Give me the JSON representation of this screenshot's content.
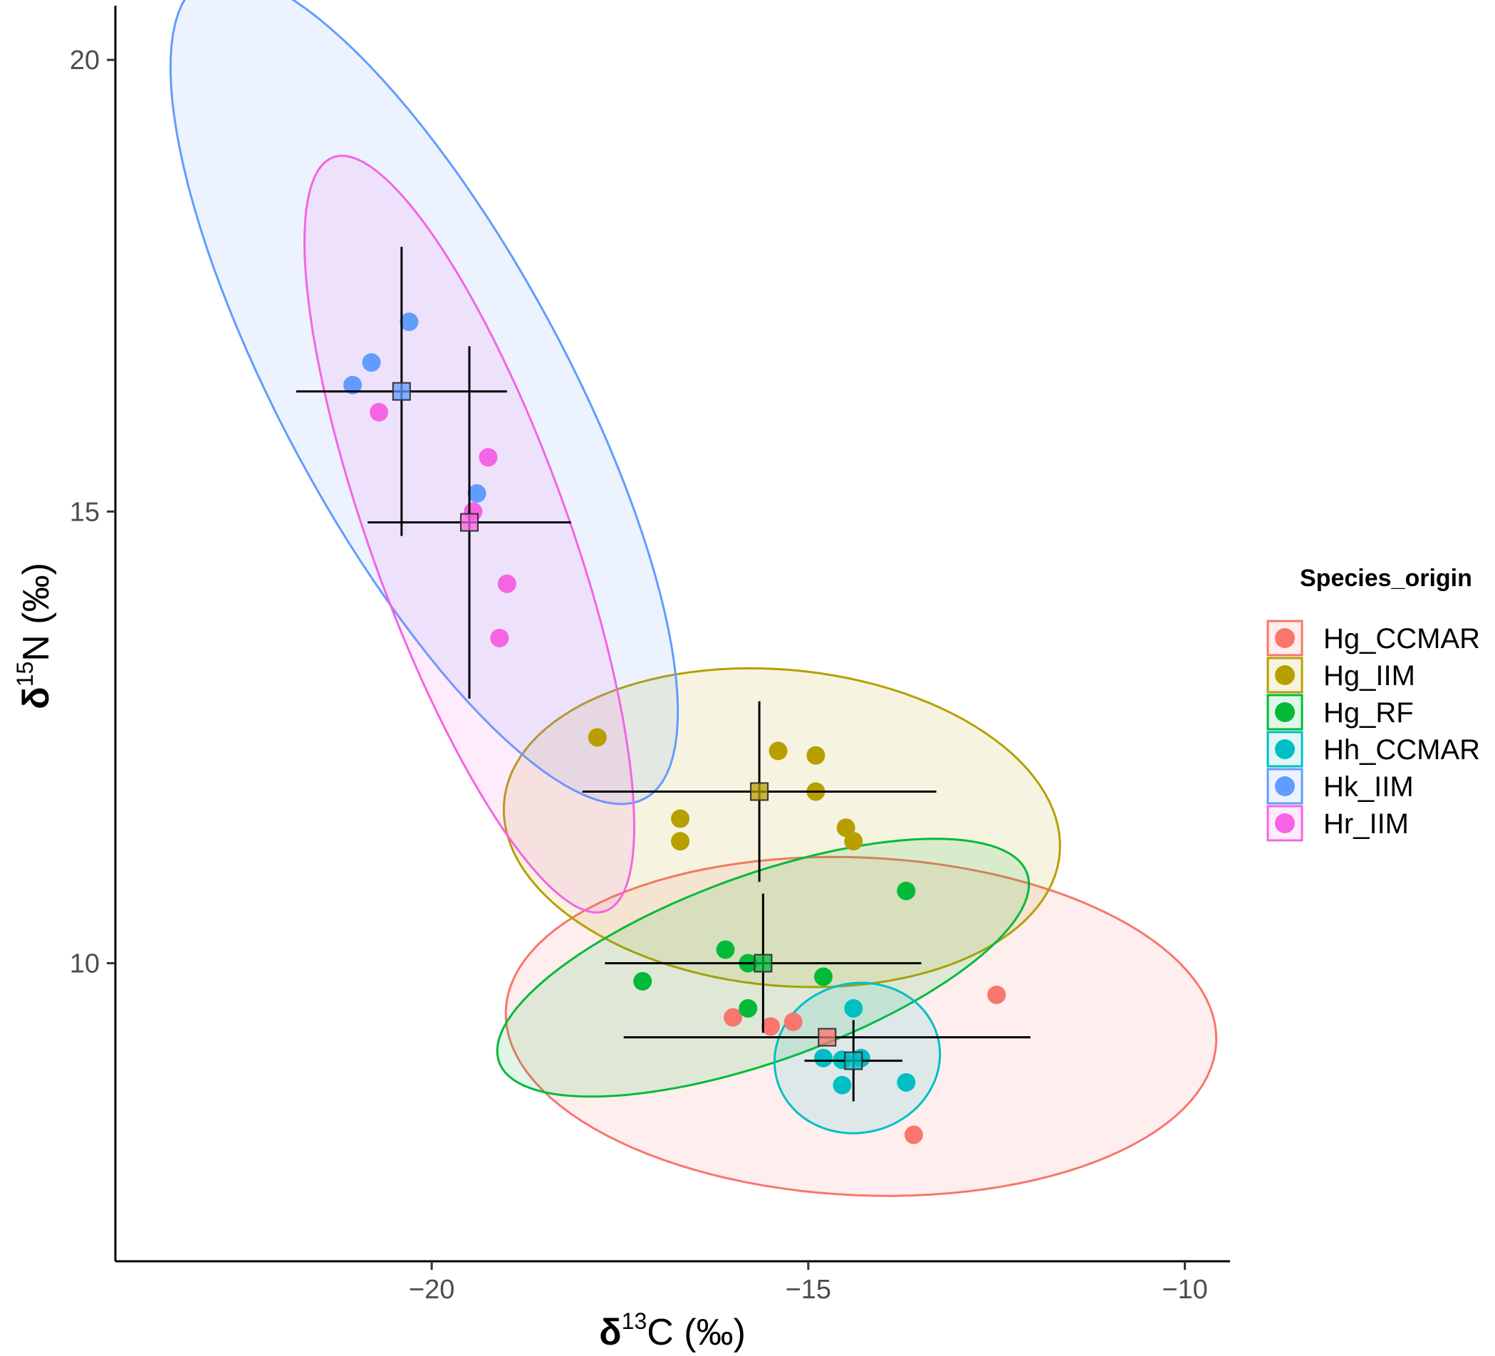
{
  "chart_data": {
    "type": "scatter",
    "xlabel": {
      "prefix": "δ",
      "sup": "13",
      "suffix": "C (‰)"
    },
    "ylabel": {
      "prefix": "δ",
      "sup": "15",
      "suffix": "N (‰)"
    },
    "xlim": [
      -24.2,
      -9.4
    ],
    "ylim": [
      6.7,
      20.6
    ],
    "x_ticks": [
      -20,
      -15,
      -10
    ],
    "x_tick_labels": [
      "−20",
      "−15",
      "−10"
    ],
    "y_ticks": [
      10,
      15,
      20
    ],
    "y_tick_labels": [
      "10",
      "15",
      "20"
    ],
    "grid": false,
    "legend": {
      "title": "Species_origin",
      "position": "right"
    },
    "series": [
      {
        "name": "Hg_CCMAR",
        "color": "#F8766D",
        "points": [
          [
            -16.0,
            9.4
          ],
          [
            -15.5,
            9.3
          ],
          [
            -15.2,
            9.35
          ],
          [
            -12.5,
            9.65
          ],
          [
            -13.6,
            8.1
          ]
        ],
        "mean": [
          -14.75,
          9.18
        ],
        "sd_x": 2.7,
        "sd_y": 0.0,
        "ellipse": {
          "cx": -14.3,
          "cy": 9.3,
          "rx": 4.72,
          "ry": 1.87,
          "angle_deg": -2
        }
      },
      {
        "name": "Hg_IIM",
        "color": "#B79F00",
        "points": [
          [
            -17.8,
            12.5
          ],
          [
            -15.4,
            12.35
          ],
          [
            -14.9,
            12.3
          ],
          [
            -16.7,
            11.6
          ],
          [
            -16.7,
            11.35
          ],
          [
            -14.9,
            11.9
          ],
          [
            -14.5,
            11.5
          ],
          [
            -14.4,
            11.35
          ]
        ],
        "mean": [
          -15.65,
          11.9
        ],
        "sd_x": 2.35,
        "sd_y": 1.0,
        "ellipse": {
          "cx": -15.35,
          "cy": 11.5,
          "rx": 3.7,
          "ry": 1.75,
          "angle_deg": -4
        }
      },
      {
        "name": "Hg_RF",
        "color": "#00BA38",
        "points": [
          [
            -13.7,
            10.8
          ],
          [
            -16.1,
            10.15
          ],
          [
            -15.8,
            10.0
          ],
          [
            -17.2,
            9.8
          ],
          [
            -14.8,
            9.85
          ],
          [
            -15.8,
            9.5
          ]
        ],
        "mean": [
          -15.6,
          10.0
        ],
        "sd_x": 2.1,
        "sd_y": 0.77,
        "ellipse": {
          "cx": -15.6,
          "cy": 9.95,
          "rx": 3.66,
          "ry": 1.05,
          "angle_deg": 16
        }
      },
      {
        "name": "Hh_CCMAR",
        "color": "#00BFC4",
        "points": [
          [
            -14.4,
            9.5
          ],
          [
            -14.8,
            8.95
          ],
          [
            -14.55,
            8.93
          ],
          [
            -14.3,
            8.95
          ],
          [
            -14.55,
            8.65
          ],
          [
            -13.7,
            8.68
          ]
        ],
        "mean": [
          -14.4,
          8.92
        ],
        "sd_x": 0.65,
        "sd_y": 0.45,
        "ellipse": {
          "cx": -14.35,
          "cy": 8.95,
          "rx": 1.1,
          "ry": 0.83,
          "angle_deg": 5
        }
      },
      {
        "name": "Hk_IIM",
        "color": "#619CFF",
        "points": [
          [
            -20.3,
            17.1
          ],
          [
            -20.8,
            16.65
          ],
          [
            -21.05,
            16.4
          ],
          [
            -19.4,
            15.2
          ]
        ],
        "mean": [
          -20.4,
          16.33
        ],
        "sd_x": 1.4,
        "sd_y": 1.6,
        "ellipse": {
          "cx": -20.1,
          "cy": 16.35,
          "rx": 5.4,
          "ry": 1.8,
          "angle_deg": -56
        }
      },
      {
        "name": "Hr_IIM",
        "color": "#F564E3",
        "points": [
          [
            -20.7,
            16.1
          ],
          [
            -19.25,
            15.6
          ],
          [
            -19.45,
            15.0
          ],
          [
            -19.0,
            14.2
          ],
          [
            -19.1,
            13.6
          ]
        ],
        "mean": [
          -19.5,
          14.88
        ],
        "sd_x": 1.35,
        "sd_y": 1.95,
        "ellipse": {
          "cx": -19.5,
          "cy": 14.75,
          "rx": 4.55,
          "ry": 1.28,
          "angle_deg": -66
        }
      }
    ]
  }
}
